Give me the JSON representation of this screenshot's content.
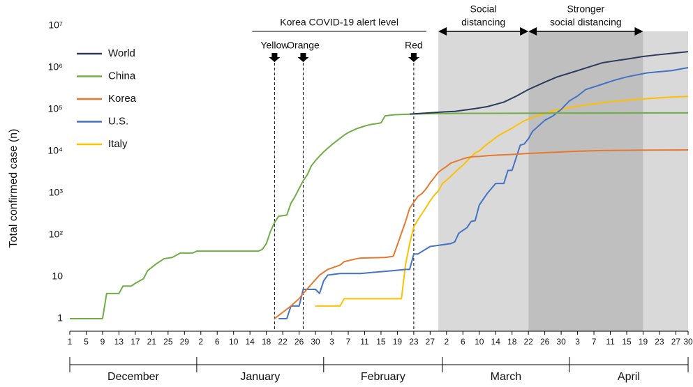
{
  "chart_data": {
    "type": "line",
    "y_label": "Total confirmed case (n)",
    "log_scale": true,
    "xlim": [
      1,
      152
    ],
    "ylim": [
      0.5,
      10000000
    ],
    "yticks": [
      1,
      10,
      {
        "value": 100,
        "label": "10²"
      },
      {
        "value": 1000,
        "label": "10³"
      },
      {
        "value": 10000,
        "label": "10⁴"
      },
      {
        "value": 100000,
        "label": "10⁵"
      },
      {
        "value": 1000000,
        "label": "10⁶"
      },
      {
        "value": 10000000,
        "label": "10⁷"
      }
    ],
    "xticks": [
      1,
      5,
      9,
      13,
      17,
      21,
      25,
      29,
      {
        "value": 33,
        "label": "2"
      },
      {
        "value": 37,
        "label": "6"
      },
      {
        "value": 41,
        "label": "10"
      },
      {
        "value": 45,
        "label": "14"
      },
      {
        "value": 49,
        "label": "18"
      },
      {
        "value": 53,
        "label": "22"
      },
      {
        "value": 57,
        "label": "26"
      },
      {
        "value": 61,
        "label": "30"
      },
      {
        "value": 65,
        "label": "3"
      },
      {
        "value": 69,
        "label": "7"
      },
      {
        "value": 73,
        "label": "11"
      },
      {
        "value": 77,
        "label": "15"
      },
      {
        "value": 81,
        "label": "19"
      },
      {
        "value": 85,
        "label": "23"
      },
      {
        "value": 89,
        "label": "27"
      },
      {
        "value": 93,
        "label": "2"
      },
      {
        "value": 97,
        "label": "6"
      },
      {
        "value": 101,
        "label": "10"
      },
      {
        "value": 105,
        "label": "14"
      },
      {
        "value": 109,
        "label": "18"
      },
      {
        "value": 113,
        "label": "22"
      },
      {
        "value": 117,
        "label": "26"
      },
      {
        "value": 121,
        "label": "30"
      },
      {
        "value": 125,
        "label": "3"
      },
      {
        "value": 129,
        "label": "7"
      },
      {
        "value": 133,
        "label": "11"
      },
      {
        "value": 137,
        "label": "15"
      },
      {
        "value": 141,
        "label": "19"
      },
      {
        "value": 145,
        "label": "23"
      },
      {
        "value": 149,
        "label": "27"
      },
      {
        "value": 152,
        "label": "30"
      }
    ],
    "months": [
      "December",
      "January",
      "February",
      "March",
      "April"
    ],
    "month_bounds": [
      1,
      32,
      63,
      92,
      123,
      152
    ],
    "legend": "upper left",
    "alert_title": "Korea COVID-19 alert level",
    "alerts": [
      {
        "label": "Yellow",
        "x": 51
      },
      {
        "label": "Orange",
        "x": 58
      },
      {
        "label": "Red",
        "x": 85
      }
    ],
    "phases": [
      {
        "label": [
          "Social",
          "distancing"
        ],
        "start": 91,
        "end": 113,
        "color": "#d9d9d9"
      },
      {
        "label": [
          "Stronger",
          "social distancing"
        ],
        "start": 113,
        "end": 141,
        "color": "#bfbfbf"
      },
      {
        "start": 141,
        "end": 152,
        "color": "#d9d9d9"
      }
    ],
    "series": [
      {
        "name": "World",
        "color": "#2f3b5c",
        "x": [
          84,
          88,
          92,
          95,
          100,
          103,
          107,
          110,
          113,
          117,
          120,
          124,
          128,
          131,
          134,
          137,
          141,
          144,
          148,
          152
        ],
        "values": [
          77500,
          82000,
          87000,
          90000,
          105000,
          117000,
          150000,
          207000,
          300000,
          450000,
          600000,
          790000,
          1050000,
          1300000,
          1450000,
          1600000,
          1850000,
          2000000,
          2200000,
          2400000
        ]
      },
      {
        "name": "China",
        "color": "#70ad47",
        "x": [
          1,
          9,
          10,
          13,
          14,
          16,
          17,
          19,
          20,
          22,
          24,
          26,
          28,
          31,
          32,
          47,
          48,
          49,
          50,
          51,
          52,
          54,
          55,
          56,
          57,
          58,
          59,
          60,
          61,
          62,
          63,
          64,
          65,
          66,
          67,
          68,
          69,
          70,
          71,
          72,
          73,
          74,
          75,
          76,
          77,
          78,
          79,
          80,
          81,
          84,
          88,
          95,
          105,
          120,
          152
        ],
        "values": [
          1,
          1,
          4,
          4,
          6,
          6,
          7,
          9,
          14,
          20,
          27,
          29,
          37,
          37,
          41,
          41,
          45,
          62,
          121,
          198,
          280,
          300,
          571,
          830,
          1287,
          1975,
          2744,
          4515,
          5974,
          7711,
          9692,
          11791,
          14380,
          17205,
          20438,
          24324,
          28018,
          31161,
          34546,
          37198,
          40171,
          42638,
          44653,
          46000,
          48000,
          70000,
          72436,
          74185,
          75465,
          77000,
          79000,
          80500,
          81000,
          82000,
          83000
        ]
      },
      {
        "name": "Korea",
        "color": "#e6792f",
        "x": [
          51,
          55,
          57,
          58,
          62,
          64,
          67,
          68,
          71,
          72,
          78,
          79,
          80,
          81,
          82,
          83,
          84,
          85,
          86,
          87,
          88,
          89,
          90,
          91,
          92,
          93,
          94,
          95,
          96,
          97,
          98,
          99,
          100,
          101,
          103,
          105,
          107,
          109,
          111,
          113,
          117,
          121,
          125,
          130,
          135,
          140,
          145,
          152
        ],
        "values": [
          1,
          2,
          3,
          4,
          11,
          15,
          19,
          23,
          27,
          28,
          29,
          30,
          31,
          58,
          111,
          209,
          436,
          602,
          833,
          977,
          1261,
          1766,
          2337,
          3150,
          3736,
          4335,
          5186,
          5621,
          6088,
          6593,
          7041,
          7313,
          7478,
          7513,
          7869,
          8086,
          8236,
          8413,
          8652,
          8897,
          9241,
          9661,
          10062,
          10384,
          10512,
          10613,
          10708,
          10765
        ]
      },
      {
        "name": "U.S.",
        "color": "#4472c4",
        "x": [
          52,
          54,
          55,
          57,
          58,
          61,
          62,
          63,
          64,
          67,
          72,
          76,
          80,
          83,
          84,
          85,
          86,
          89,
          93,
          94,
          95,
          96,
          98,
          99,
          100,
          101,
          103,
          104,
          105,
          107,
          108,
          109,
          110,
          111,
          112,
          113,
          114,
          117,
          119,
          121,
          123,
          125,
          127,
          131,
          134,
          137,
          142,
          148,
          152
        ],
        "values": [
          1,
          1,
          2,
          2,
          5,
          5,
          4,
          8,
          11,
          12,
          12,
          13,
          14,
          15,
          15,
          35,
          35,
          53,
          60,
          62,
          68,
          110,
          150,
          210,
          220,
          520,
          1000,
          1300,
          1700,
          1700,
          3500,
          3500,
          7000,
          14000,
          15000,
          20000,
          30000,
          55000,
          70000,
          100000,
          160000,
          210000,
          300000,
          400000,
          500000,
          600000,
          750000,
          850000,
          1000000
        ]
      },
      {
        "name": "Italy",
        "color": "#ffc000",
        "x": [
          61,
          67,
          68,
          82,
          83,
          84,
          85,
          86,
          87,
          88,
          89,
          90,
          91,
          92,
          93,
          94,
          95,
          96,
          97,
          98,
          99,
          100,
          101,
          102,
          103,
          104,
          105,
          106,
          107,
          108,
          109,
          110,
          111,
          112,
          113,
          114,
          115,
          116,
          117,
          118,
          119,
          120,
          121,
          122,
          123,
          125,
          127,
          129,
          131,
          133,
          135,
          137,
          139,
          141,
          143,
          145,
          147,
          149,
          152
        ],
        "values": [
          2,
          2,
          3,
          3,
          20,
          62,
          155,
          229,
          322,
          453,
          655,
          888,
          1128,
          1694,
          2036,
          2502,
          3089,
          3858,
          4636,
          5883,
          7375,
          9172,
          10149,
          12462,
          15113,
          17660,
          21157,
          24747,
          27980,
          31506,
          35713,
          41035,
          47021,
          53578,
          59138,
          63927,
          69176,
          74386,
          80589,
          86498,
          92472,
          97689,
          101739,
          105792,
          110574,
          119827,
          128948,
          135586,
          143626,
          152271,
          159516,
          165155,
          172434,
          178972,
          183957,
          189973,
          195351,
          199414,
          205463
        ]
      }
    ]
  }
}
